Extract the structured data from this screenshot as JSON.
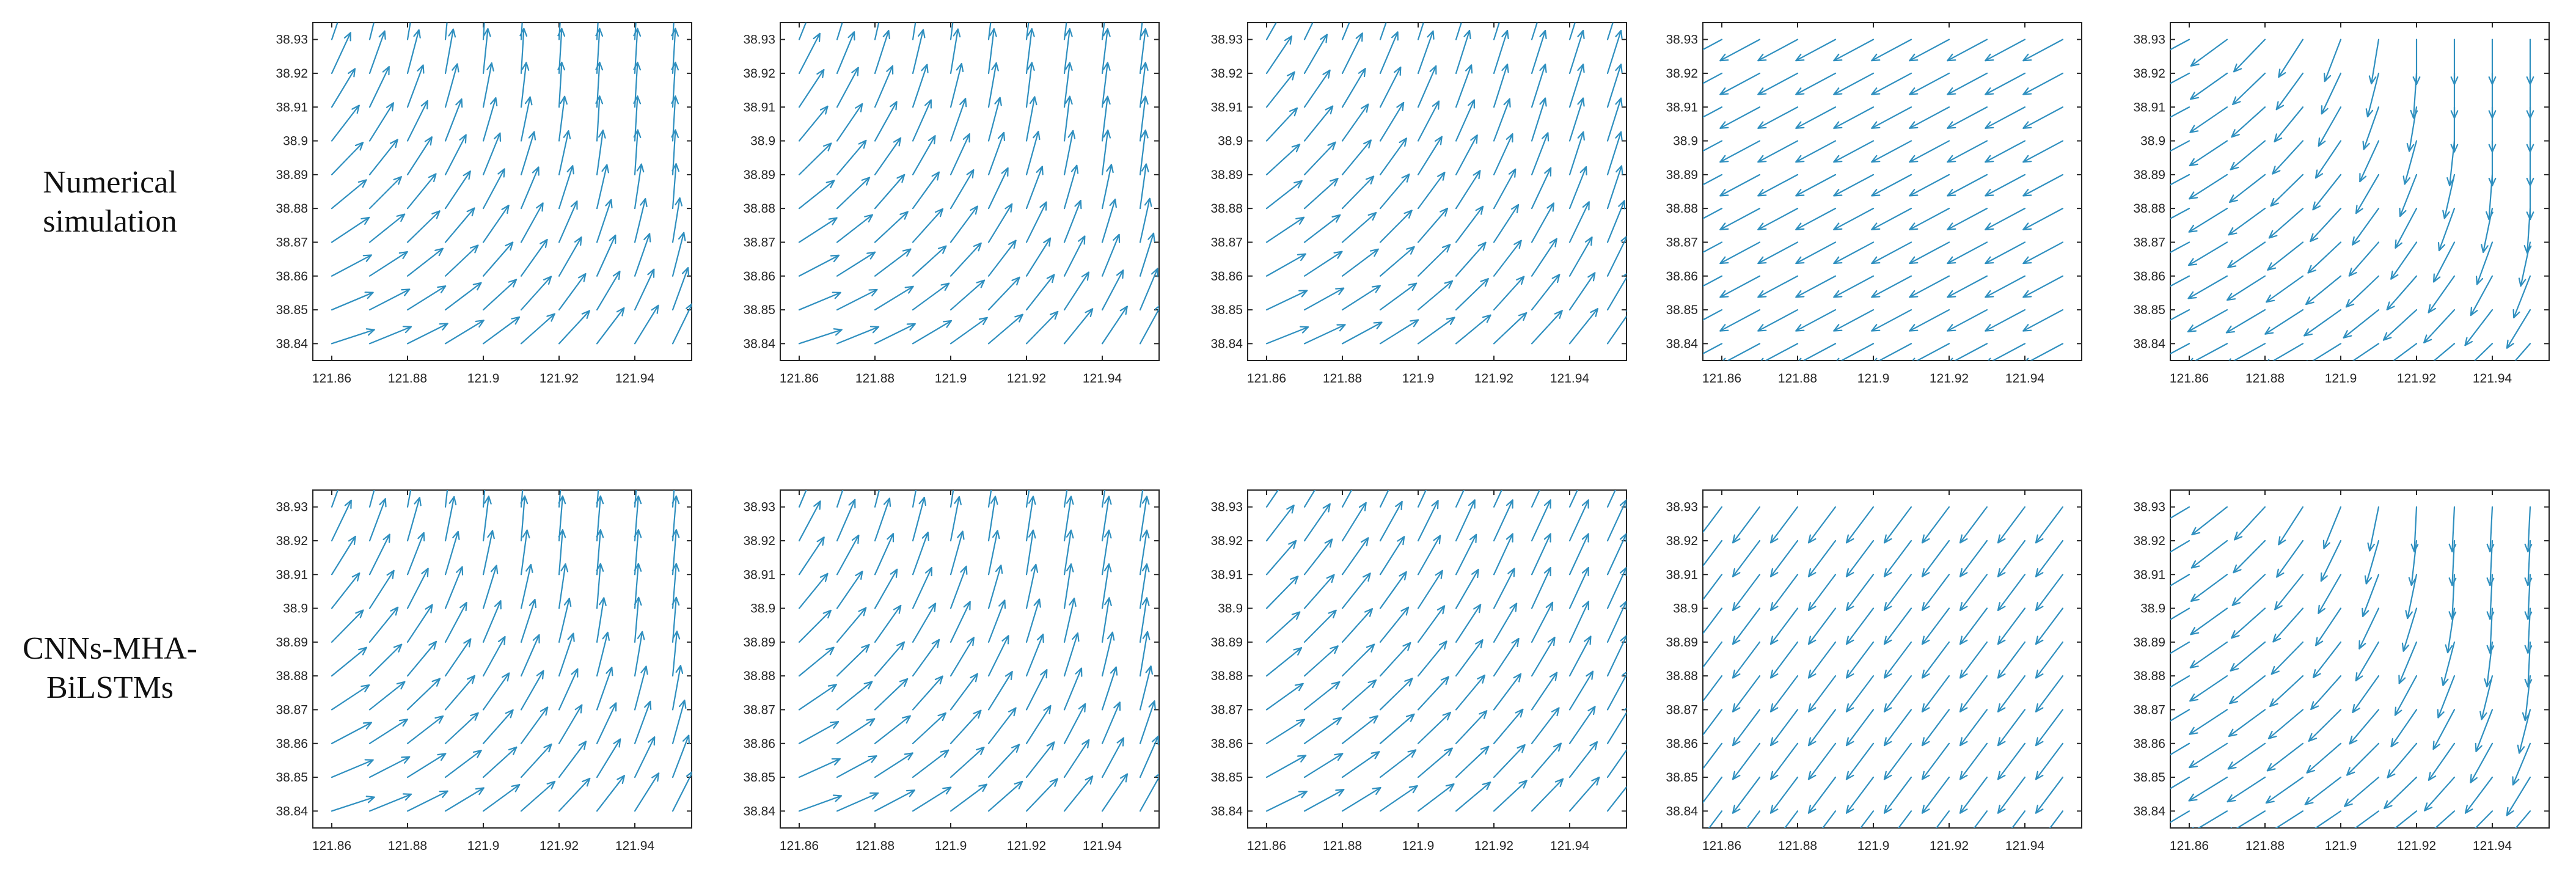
{
  "row_labels": [
    [
      "Numerical",
      "simulation"
    ],
    [
      "CNNs-MHA-",
      "BiLSTMs"
    ]
  ],
  "colors": {
    "arrow": "#2e8fbf",
    "axis": "#262626",
    "background": "#ffffff"
  },
  "chart_data": {
    "type": "quiver",
    "grid_rows": 2,
    "grid_cols": 5,
    "xlim": [
      121.855,
      121.955
    ],
    "ylim": [
      38.835,
      38.935
    ],
    "x_ticks": [
      121.86,
      121.88,
      121.9,
      121.92,
      121.94
    ],
    "x_tick_labels": [
      "121.86",
      "121.88",
      "121.9",
      "121.92",
      "121.94"
    ],
    "y_ticks": [
      38.84,
      38.85,
      38.86,
      38.87,
      38.88,
      38.89,
      38.9,
      38.91,
      38.92,
      38.93
    ],
    "y_tick_labels": [
      "38.84",
      "38.85",
      "38.86",
      "38.87",
      "38.88",
      "38.89",
      "38.9",
      "38.91",
      "38.92",
      "38.93"
    ],
    "grid_points": {
      "x": [
        121.86,
        121.87,
        121.88,
        121.89,
        121.9,
        121.91,
        121.92,
        121.93,
        121.94,
        121.95
      ],
      "y": [
        38.84,
        38.85,
        38.86,
        38.87,
        38.88,
        38.89,
        38.9,
        38.91,
        38.92,
        38.93
      ]
    },
    "arrow_length_in_cells": 1.25,
    "panels": [
      {
        "row": 0,
        "col": 0,
        "pattern": "curved_north",
        "u0": 0.95,
        "v0": 0.31,
        "u1": 0.06,
        "v1": 1.0
      },
      {
        "row": 0,
        "col": 1,
        "pattern": "curved_north",
        "u0": 0.95,
        "v0": 0.31,
        "u1": 0.12,
        "v1": 0.99
      },
      {
        "row": 0,
        "col": 2,
        "pattern": "curved_north",
        "u0": 0.93,
        "v0": 0.37,
        "u1": 0.3,
        "v1": 0.95
      },
      {
        "row": 0,
        "col": 3,
        "pattern": "uniform",
        "u": -0.88,
        "v": -0.47
      },
      {
        "row": 0,
        "col": 4,
        "pattern": "turning",
        "u0": -0.88,
        "v0": -0.47,
        "u1": 0.0,
        "v1": -1.0
      },
      {
        "row": 1,
        "col": 0,
        "pattern": "curved_north",
        "u0": 0.95,
        "v0": 0.31,
        "u1": 0.08,
        "v1": 1.0
      },
      {
        "row": 1,
        "col": 1,
        "pattern": "curved_north",
        "u0": 0.94,
        "v0": 0.34,
        "u1": 0.15,
        "v1": 0.99
      },
      {
        "row": 1,
        "col": 2,
        "pattern": "curved_north",
        "u0": 0.9,
        "v0": 0.44,
        "u1": 0.42,
        "v1": 0.91
      },
      {
        "row": 1,
        "col": 3,
        "pattern": "uniform",
        "u": -0.6,
        "v": -0.8
      },
      {
        "row": 1,
        "col": 4,
        "pattern": "turning",
        "u0": -0.86,
        "v0": -0.51,
        "u1": -0.05,
        "v1": -1.0
      }
    ]
  }
}
